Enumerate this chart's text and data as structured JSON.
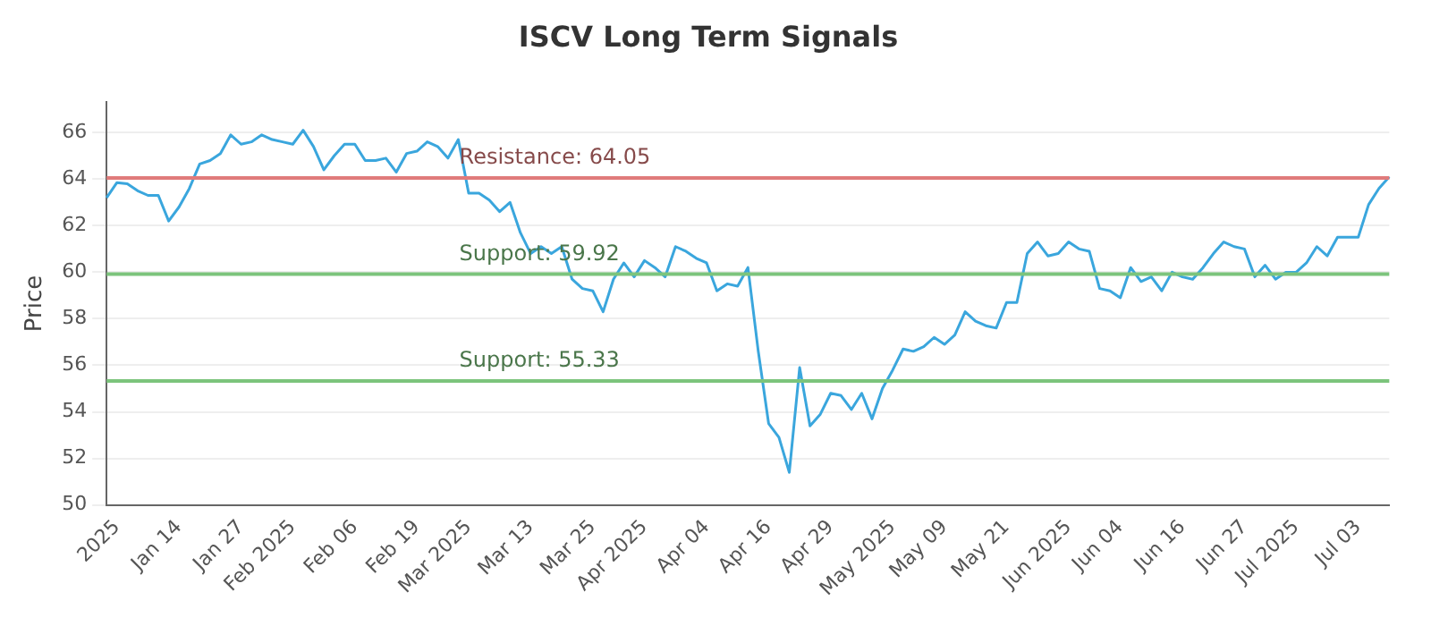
{
  "chart_data": {
    "type": "line",
    "title": "ISCV Long Term Signals",
    "ylabel": "Price",
    "categories": [
      null,
      "2025",
      null,
      null,
      null,
      null,
      null,
      "Jan 14",
      null,
      null,
      null,
      null,
      null,
      "Jan 27",
      null,
      null,
      null,
      null,
      "Feb 2025",
      null,
      null,
      null,
      null,
      null,
      "Feb 06",
      null,
      null,
      null,
      null,
      null,
      "Feb 19",
      null,
      null,
      null,
      null,
      "Mar 2025",
      null,
      null,
      null,
      null,
      null,
      "Mar 13",
      null,
      null,
      null,
      null,
      null,
      "Mar 25",
      null,
      null,
      null,
      null,
      "Apr 2025",
      null,
      null,
      null,
      null,
      null,
      "Apr 04",
      null,
      null,
      null,
      null,
      null,
      "Apr 16",
      null,
      null,
      null,
      null,
      null,
      "Apr 29",
      null,
      null,
      null,
      null,
      null,
      "May 2025",
      null,
      null,
      null,
      null,
      "May 09",
      null,
      null,
      null,
      null,
      null,
      "May 21",
      null,
      null,
      null,
      null,
      null,
      "Jun 2025",
      null,
      null,
      null,
      null,
      "Jun 04",
      null,
      null,
      null,
      null,
      null,
      "Jun 16",
      null,
      null,
      null,
      null,
      null,
      "Jun 27",
      null,
      null,
      null,
      null,
      "Jul 2025",
      null,
      null,
      null,
      null,
      null,
      "Jul 03",
      null,
      null,
      null
    ],
    "series": [
      {
        "color": "#3aa6dd",
        "values": [
          63.2,
          63.85,
          63.8,
          63.5,
          63.3,
          63.3,
          62.2,
          62.8,
          63.6,
          64.65,
          64.8,
          65.1,
          65.9,
          65.5,
          65.6,
          65.9,
          65.7,
          65.6,
          65.5,
          66.1,
          65.4,
          64.4,
          65.0,
          65.5,
          65.5,
          64.8,
          64.8,
          64.9,
          64.3,
          65.1,
          65.2,
          65.6,
          65.4,
          64.9,
          65.7,
          63.4,
          63.4,
          63.1,
          62.6,
          63.0,
          61.7,
          60.8,
          61.1,
          60.8,
          61.1,
          59.7,
          59.3,
          59.2,
          58.3,
          59.7,
          60.4,
          59.8,
          60.5,
          60.2,
          59.8,
          61.1,
          60.9,
          60.6,
          60.4,
          59.2,
          59.5,
          59.4,
          60.2,
          56.6,
          53.5,
          52.9,
          51.4,
          55.9,
          53.4,
          53.9,
          54.8,
          54.7,
          54.1,
          54.8,
          53.7,
          55.0,
          55.8,
          56.7,
          56.6,
          56.8,
          57.2,
          56.9,
          57.3,
          58.3,
          57.9,
          57.7,
          57.6,
          58.7,
          58.7,
          60.8,
          61.3,
          60.7,
          60.8,
          61.3,
          61.0,
          60.9,
          59.3,
          59.2,
          58.9,
          60.2,
          59.6,
          59.8,
          59.2,
          60.0,
          59.8,
          59.7,
          60.2,
          60.8,
          61.3,
          61.1,
          61.0,
          59.8,
          60.3,
          59.7,
          60.0,
          60.0,
          60.4,
          61.1,
          60.7,
          61.5,
          61.5,
          61.5,
          62.9,
          63.6,
          64.1
        ]
      }
    ],
    "ylim": [
      50,
      67.3
    ],
    "yticks": [
      50,
      52,
      54,
      56,
      58,
      60,
      62,
      64,
      66
    ],
    "grid": "y",
    "legend": false,
    "marker": "none",
    "line_style": "solid",
    "ref_lines": [
      {
        "axis": "y",
        "value": 64.05,
        "label": "Resistance: 64.05",
        "color": "#e07b7b"
      },
      {
        "axis": "y",
        "value": 59.92,
        "label": "Support: 59.92",
        "color": "#7cc47c"
      },
      {
        "axis": "y",
        "value": 55.33,
        "label": "Support: 55.33",
        "color": "#7cc47c"
      }
    ]
  }
}
